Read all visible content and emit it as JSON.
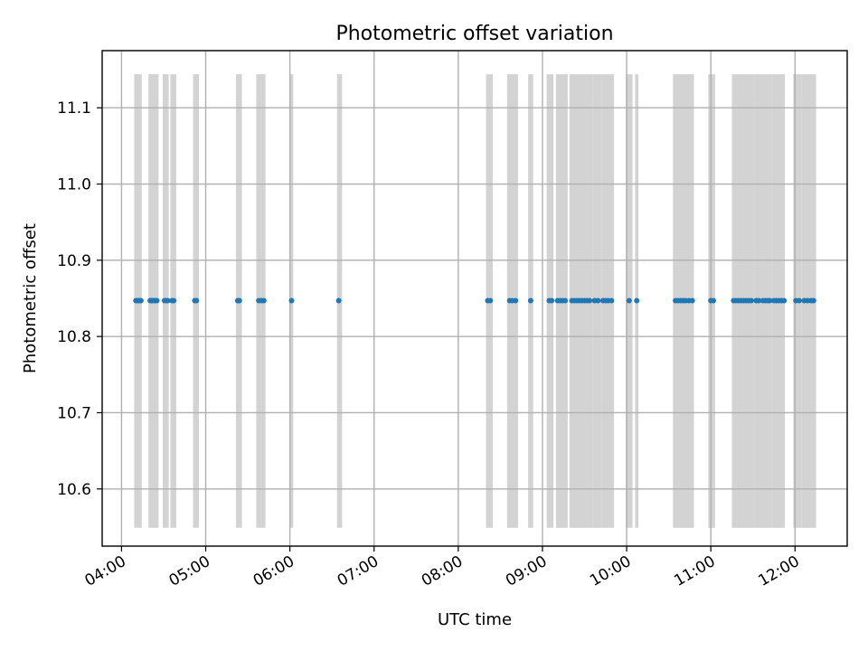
{
  "chart_data": {
    "type": "scatter",
    "title": "Photometric offset variation",
    "xlabel": "UTC time",
    "ylabel": "Photometric offset",
    "x_tick_labels": [
      "04:00",
      "05:00",
      "06:00",
      "07:00",
      "08:00",
      "09:00",
      "10:00",
      "11:00",
      "12:00"
    ],
    "y_tick_labels": [
      "10.6",
      "10.7",
      "10.8",
      "10.9",
      "11.0",
      "11.1"
    ],
    "x_ticks_hours": [
      4,
      5,
      6,
      7,
      8,
      9,
      10,
      11,
      12
    ],
    "y_ticks": [
      10.6,
      10.7,
      10.8,
      10.9,
      11.0,
      11.1
    ],
    "xlim_hours": [
      3.77,
      12.62
    ],
    "ylim": [
      10.525,
      11.175
    ],
    "grid": true,
    "marker_color": "#1f77b4",
    "span_color": "#d3d3d3",
    "span_ylim": [
      10.549,
      11.144
    ],
    "spans_hours": [
      [
        4.15,
        4.24
      ],
      [
        4.32,
        4.44
      ],
      [
        4.49,
        4.56
      ],
      [
        4.58,
        4.65
      ],
      [
        4.85,
        4.92
      ],
      [
        5.36,
        5.43
      ],
      [
        5.6,
        5.71
      ],
      [
        6.0,
        6.04
      ],
      [
        6.56,
        6.62
      ],
      [
        8.33,
        8.41
      ],
      [
        8.58,
        8.71
      ],
      [
        8.83,
        8.89
      ],
      [
        9.05,
        9.13
      ],
      [
        9.16,
        9.3
      ],
      [
        9.32,
        9.6
      ],
      [
        9.6,
        9.7
      ],
      [
        9.7,
        9.85
      ],
      [
        9.99,
        10.07
      ],
      [
        10.1,
        10.14
      ],
      [
        10.55,
        10.8
      ],
      [
        10.97,
        11.05
      ],
      [
        11.25,
        11.52
      ],
      [
        11.52,
        11.6
      ],
      [
        11.6,
        11.72
      ],
      [
        11.72,
        11.88
      ],
      [
        11.98,
        12.08
      ],
      [
        12.08,
        12.25
      ]
    ],
    "series": [
      {
        "x_hours": [
          4.17,
          4.19,
          4.21,
          4.23,
          4.34,
          4.36,
          4.38,
          4.4,
          4.42,
          4.51,
          4.53,
          4.55,
          4.6,
          4.62,
          4.87,
          4.89,
          5.38,
          5.4,
          5.63,
          5.66,
          5.69,
          6.02,
          6.58,
          8.35,
          8.38,
          8.61,
          8.64,
          8.68,
          8.86,
          9.08,
          9.11,
          9.18,
          9.21,
          9.24,
          9.27,
          9.35,
          9.38,
          9.41,
          9.44,
          9.47,
          9.5,
          9.53,
          9.56,
          9.62,
          9.66,
          9.72,
          9.75,
          9.78,
          9.82,
          10.03,
          10.12,
          10.58,
          10.61,
          10.64,
          10.67,
          10.7,
          10.74,
          10.78,
          11.0,
          11.03,
          11.27,
          11.3,
          11.33,
          11.36,
          11.39,
          11.42,
          11.45,
          11.48,
          11.54,
          11.57,
          11.62,
          11.65,
          11.68,
          11.7,
          11.75,
          11.78,
          11.81,
          11.84,
          11.87,
          12.01,
          12.05,
          12.11,
          12.15,
          12.19,
          12.22
        ],
        "y": 10.847
      }
    ]
  }
}
